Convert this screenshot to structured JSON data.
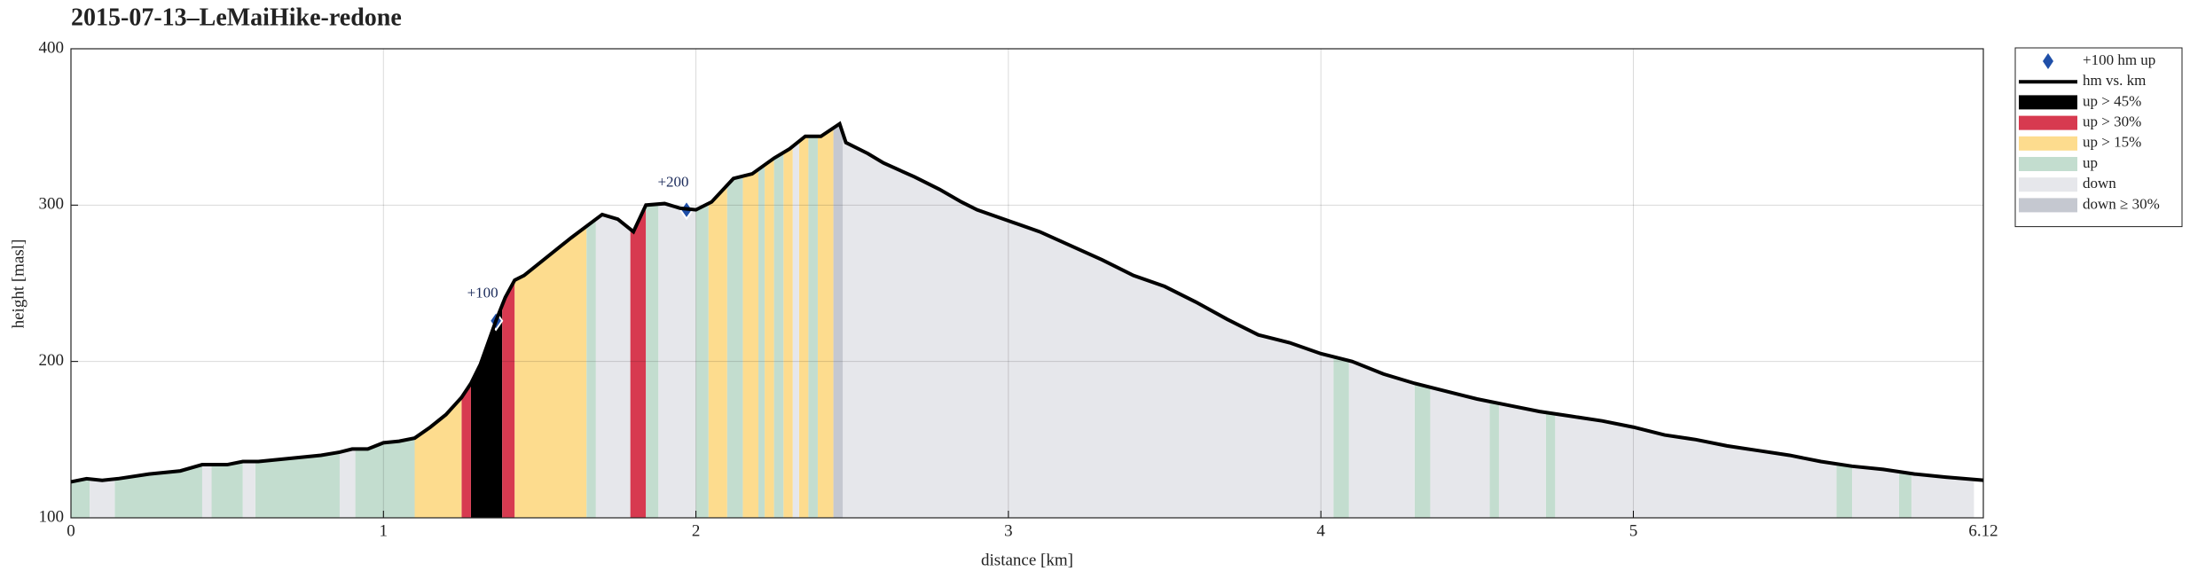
{
  "chart_data": {
    "type": "line",
    "title": "2015-07-13–LeMaiHike-redone",
    "x_label": "distance [km]",
    "y_label": "height [masl]",
    "xlim": [
      0,
      6.12
    ],
    "ylim": [
      100,
      400
    ],
    "xticks": [
      0,
      1,
      2,
      3,
      4,
      5,
      6.12
    ],
    "yticks": [
      100,
      200,
      300,
      400
    ],
    "grid": true,
    "legend": "outside-right",
    "series": [
      {
        "name": "+100 hm up",
        "type": "marker",
        "color": "#1f4fa8",
        "x": [
          1.36,
          1.97
        ],
        "values": [
          226,
          297
        ],
        "labels": [
          "+100",
          "+200"
        ]
      },
      {
        "name": "hm vs. km",
        "type": "line",
        "color": "#000000",
        "x": [
          0,
          0.05,
          0.1,
          0.15,
          0.25,
          0.35,
          0.42,
          0.5,
          0.55,
          0.6,
          0.7,
          0.8,
          0.86,
          0.9,
          0.95,
          1.0,
          1.05,
          1.1,
          1.15,
          1.2,
          1.25,
          1.28,
          1.31,
          1.36,
          1.39,
          1.42,
          1.45,
          1.5,
          1.6,
          1.7,
          1.75,
          1.8,
          1.84,
          1.9,
          1.95,
          2.0,
          2.05,
          2.12,
          2.18,
          2.25,
          2.3,
          2.35,
          2.4,
          2.46,
          2.48,
          2.55,
          2.6,
          2.7,
          2.78,
          2.85,
          2.9,
          3.0,
          3.1,
          3.2,
          3.3,
          3.4,
          3.5,
          3.6,
          3.7,
          3.8,
          3.9,
          4.0,
          4.1,
          4.2,
          4.3,
          4.4,
          4.5,
          4.6,
          4.7,
          4.8,
          4.9,
          5.0,
          5.1,
          5.2,
          5.3,
          5.4,
          5.5,
          5.6,
          5.7,
          5.8,
          5.9,
          6.0,
          6.12
        ],
        "values": [
          123,
          125,
          124,
          125,
          128,
          130,
          134,
          134,
          136,
          136,
          138,
          140,
          142,
          144,
          144,
          148,
          149,
          151,
          158,
          166,
          177,
          186,
          198,
          226,
          241,
          252,
          255,
          263,
          279,
          294,
          291,
          283,
          300,
          301,
          298,
          297,
          302,
          317,
          320,
          330,
          336,
          344,
          344,
          352,
          340,
          333,
          327,
          318,
          310,
          302,
          297,
          290,
          283,
          274,
          265,
          255,
          248,
          238,
          227,
          217,
          212,
          205,
          200,
          192,
          186,
          181,
          176,
          172,
          168,
          165,
          162,
          158,
          153,
          150,
          146,
          143,
          140,
          136,
          133,
          131,
          128,
          126,
          124
        ]
      },
      {
        "name": "up > 45%",
        "type": "band",
        "color": "#000000",
        "ranges": [
          [
            1.28,
            1.38
          ]
        ]
      },
      {
        "name": "up > 30%",
        "type": "band",
        "color": "#d73a50",
        "ranges": [
          [
            1.25,
            1.28
          ],
          [
            1.38,
            1.42
          ],
          [
            1.79,
            1.84
          ]
        ]
      },
      {
        "name": "up > 15%",
        "type": "band",
        "color": "#fddc8e",
        "ranges": [
          [
            1.1,
            1.25
          ],
          [
            1.42,
            1.65
          ],
          [
            2.04,
            2.1
          ],
          [
            2.15,
            2.2
          ],
          [
            2.22,
            2.25
          ],
          [
            2.28,
            2.31
          ],
          [
            2.33,
            2.36
          ],
          [
            2.39,
            2.44
          ]
        ]
      },
      {
        "name": "up",
        "type": "band",
        "color": "#c3ddcf",
        "ranges": [
          [
            0,
            0.06
          ],
          [
            0.14,
            0.42
          ],
          [
            0.45,
            0.55
          ],
          [
            0.59,
            0.86
          ],
          [
            0.91,
            1.1
          ],
          [
            1.65,
            1.68
          ],
          [
            1.84,
            1.88
          ],
          [
            2.0,
            2.04
          ],
          [
            2.1,
            2.15
          ],
          [
            2.2,
            2.22
          ],
          [
            2.25,
            2.28
          ],
          [
            2.36,
            2.39
          ],
          [
            4.04,
            4.09
          ],
          [
            4.3,
            4.35
          ],
          [
            4.54,
            4.57
          ],
          [
            4.72,
            4.75
          ],
          [
            5.65,
            5.7
          ],
          [
            5.85,
            5.89
          ]
        ]
      },
      {
        "name": "down",
        "type": "band",
        "color": "#e6e7eb",
        "ranges": [
          [
            0.06,
            0.14
          ],
          [
            0.42,
            0.45
          ],
          [
            0.55,
            0.59
          ],
          [
            0.86,
            0.91
          ],
          [
            1.68,
            1.79
          ],
          [
            1.88,
            2.0
          ],
          [
            2.31,
            2.33
          ],
          [
            2.47,
            4.04
          ],
          [
            4.09,
            4.3
          ],
          [
            4.35,
            4.54
          ],
          [
            4.57,
            4.72
          ],
          [
            4.75,
            5.65
          ],
          [
            5.7,
            5.85
          ],
          [
            5.89,
            6.09
          ]
        ]
      },
      {
        "name": "down ≥ 30%",
        "type": "band",
        "color": "#c5c8d0",
        "ranges": [
          [
            2.44,
            2.47
          ]
        ]
      }
    ]
  }
}
